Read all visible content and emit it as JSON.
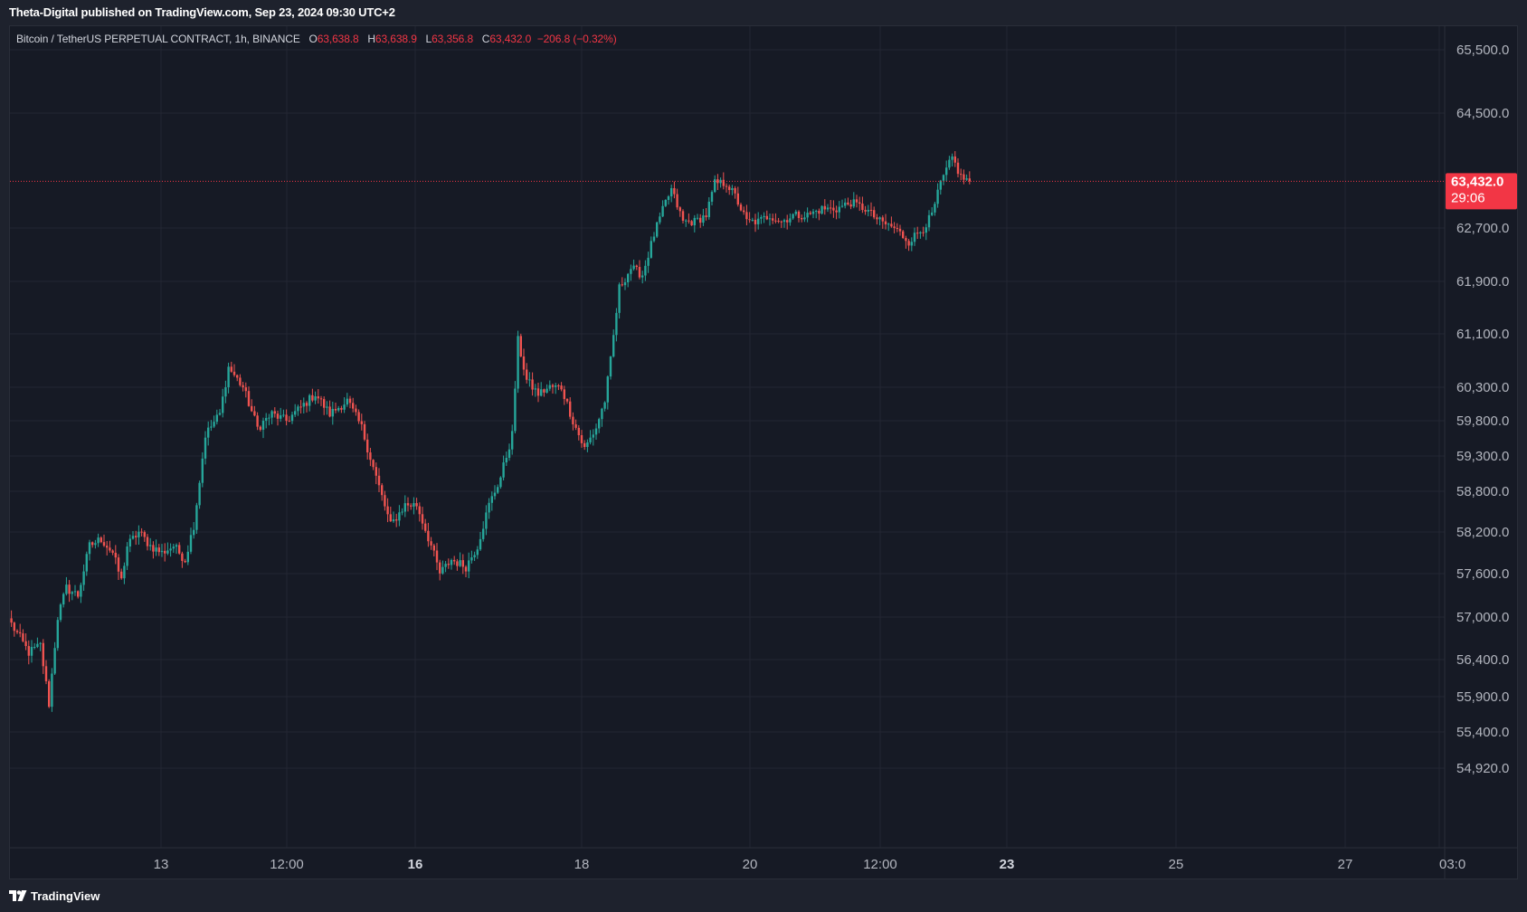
{
  "header": {
    "published_line": "Theta-Digital published on TradingView.com, Sep 23, 2024 09:30 UTC+2"
  },
  "legend": {
    "symbol": "Bitcoin / TetherUS PERPETUAL CONTRACT, 1h, BINANCE",
    "open_label": "O",
    "open": "63,638.8",
    "high_label": "H",
    "high": "63,638.9",
    "low_label": "L",
    "low": "63,356.8",
    "close_label": "C",
    "close": "63,432.0",
    "change": "−206.8 (−0.32%)"
  },
  "price_badge": {
    "price": "63,432.0",
    "countdown": "29:06",
    "color": "#f23645"
  },
  "footer": {
    "brand": "TradingView"
  },
  "colors": {
    "up": "#26a69a",
    "down": "#ef5350",
    "background": "#161a25",
    "grid": "#232632",
    "text": "#b2b5be"
  },
  "chart_data": {
    "type": "candlestick",
    "symbol": "BTCUSDT.P",
    "interval": "1h",
    "y_ticks": [
      "65,500.0",
      "64,500.0",
      "62,700.0",
      "61,900.0",
      "61,100.0",
      "60,300.0",
      "59,800.0",
      "59,300.0",
      "58,800.0",
      "58,200.0",
      "57,600.0",
      "57,000.0",
      "56,400.0",
      "55,900.0",
      "55,400.0",
      "54,920.0"
    ],
    "x_ticks": [
      {
        "label": "13",
        "bold": false
      },
      {
        "label": "12:00",
        "bold": false
      },
      {
        "label": "16",
        "bold": true
      },
      {
        "label": "18",
        "bold": false
      },
      {
        "label": "20",
        "bold": false
      },
      {
        "label": "12:00",
        "bold": false
      },
      {
        "label": "23",
        "bold": true
      },
      {
        "label": "25",
        "bold": false
      },
      {
        "label": "27",
        "bold": false
      },
      {
        "label": "03:0",
        "bold": false
      }
    ],
    "last_price": 63432.0,
    "anchors": [
      [
        0,
        56900
      ],
      [
        6,
        56500
      ],
      [
        10,
        56600
      ],
      [
        13,
        55800
      ],
      [
        16,
        57000
      ],
      [
        19,
        57400
      ],
      [
        23,
        57300
      ],
      [
        27,
        58000
      ],
      [
        31,
        58100
      ],
      [
        35,
        57900
      ],
      [
        38,
        57500
      ],
      [
        40,
        58000
      ],
      [
        44,
        58200
      ],
      [
        48,
        58000
      ],
      [
        52,
        57900
      ],
      [
        56,
        58000
      ],
      [
        60,
        57800
      ],
      [
        63,
        58300
      ],
      [
        67,
        59600
      ],
      [
        72,
        59900
      ],
      [
        75,
        60600
      ],
      [
        80,
        60300
      ],
      [
        85,
        59700
      ],
      [
        90,
        59900
      ],
      [
        95,
        59800
      ],
      [
        100,
        60000
      ],
      [
        105,
        60200
      ],
      [
        110,
        59900
      ],
      [
        116,
        60100
      ],
      [
        121,
        59700
      ],
      [
        126,
        59000
      ],
      [
        131,
        58300
      ],
      [
        136,
        58600
      ],
      [
        140,
        58600
      ],
      [
        145,
        58000
      ],
      [
        148,
        57600
      ],
      [
        152,
        57800
      ],
      [
        157,
        57700
      ],
      [
        161,
        58000
      ],
      [
        165,
        58600
      ],
      [
        169,
        59000
      ],
      [
        173,
        59600
      ],
      [
        175,
        61000
      ],
      [
        178,
        60400
      ],
      [
        182,
        60200
      ],
      [
        186,
        60300
      ],
      [
        190,
        60300
      ],
      [
        194,
        59800
      ],
      [
        198,
        59400
      ],
      [
        202,
        59700
      ],
      [
        205,
        60100
      ],
      [
        207,
        60700
      ],
      [
        210,
        61800
      ],
      [
        214,
        62100
      ],
      [
        218,
        62000
      ],
      [
        222,
        62600
      ],
      [
        226,
        63100
      ],
      [
        228,
        63300
      ],
      [
        232,
        62800
      ],
      [
        236,
        62800
      ],
      [
        240,
        62900
      ],
      [
        243,
        63400
      ],
      [
        247,
        63400
      ],
      [
        250,
        63200
      ],
      [
        254,
        62800
      ],
      [
        258,
        62800
      ],
      [
        262,
        62900
      ],
      [
        266,
        62800
      ],
      [
        270,
        62900
      ],
      [
        275,
        62900
      ],
      [
        280,
        63000
      ],
      [
        285,
        63000
      ],
      [
        290,
        63100
      ],
      [
        295,
        63000
      ],
      [
        300,
        62800
      ],
      [
        305,
        62700
      ],
      [
        310,
        62500
      ],
      [
        315,
        62700
      ],
      [
        318,
        62900
      ],
      [
        321,
        63400
      ],
      [
        325,
        63800
      ],
      [
        328,
        63500
      ],
      [
        331,
        63430
      ]
    ]
  }
}
